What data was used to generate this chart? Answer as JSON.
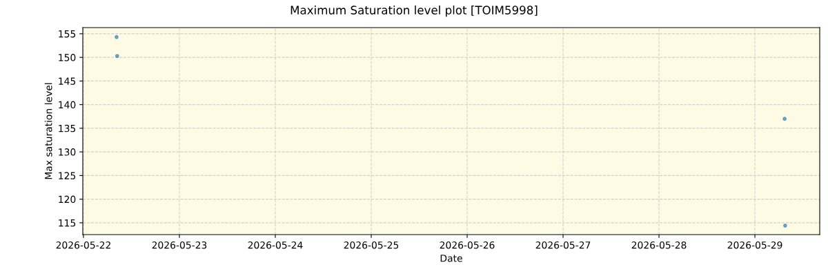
{
  "chart_data": {
    "type": "scatter",
    "title": "Maximum Saturation level plot [TOIM5998]",
    "xlabel": "Date",
    "ylabel": "Max saturation level",
    "x": [
      "2026-05-22T08:17",
      "2026-05-22T08:26",
      "2026-05-29T07:26",
      "2026-05-29T07:34"
    ],
    "series": [
      {
        "color": "#1f77b4",
        "values": [
          154.3,
          150.3,
          137.0,
          114.4
        ]
      }
    ],
    "xlim": [
      "2026-05-21T23:50",
      "2026-05-29T16:13"
    ],
    "xticks": [
      "2026-05-22",
      "2026-05-23",
      "2026-05-24",
      "2026-05-25",
      "2026-05-26",
      "2026-05-27",
      "2026-05-28",
      "2026-05-29"
    ],
    "ylim": [
      112.5,
      156.3
    ],
    "yticks": [
      115,
      120,
      125,
      130,
      135,
      140,
      145,
      150,
      155
    ],
    "grid": true,
    "marker": "circle"
  }
}
